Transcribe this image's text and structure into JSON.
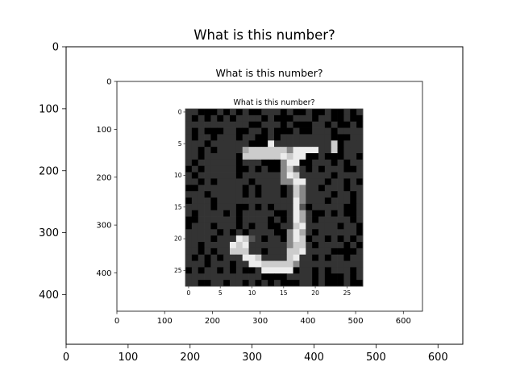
{
  "chart_data": [
    {
      "type": "heatmap",
      "title": "What is this number?",
      "x_ticks": [
        0,
        100,
        200,
        300,
        400,
        500,
        600
      ],
      "y_ticks": [
        0,
        100,
        200,
        300,
        400
      ],
      "xlim": [
        0,
        640
      ],
      "ylim": [
        480,
        0
      ],
      "content": "image of the inner plot below"
    },
    {
      "type": "heatmap",
      "title": "What is this number?",
      "x_ticks": [
        0,
        100,
        200,
        300,
        400,
        500,
        600
      ],
      "y_ticks": [
        0,
        100,
        200,
        300,
        400
      ],
      "xlim": [
        0,
        640
      ],
      "ylim": [
        480,
        0
      ],
      "content": "image of the innermost plot below"
    },
    {
      "type": "heatmap",
      "title": "What is this number?",
      "x_ticks": [
        0,
        5,
        10,
        15,
        20,
        25
      ],
      "y_ticks": [
        0,
        5,
        10,
        15,
        20,
        25
      ],
      "xlim": [
        -0.5,
        27.5
      ],
      "ylim": [
        27.5,
        -0.5
      ],
      "colormap": "gray",
      "levels": {
        "0": "#000000",
        "1": "#333333",
        "2": "#555555",
        "3": "#888888",
        "4": "#aaaaaa",
        "5": "#cccccc",
        "6": "#ececec"
      },
      "grid": [
        "1100010101001110100100100101",
        "1010101011110100011101100100",
        "1111111111001110100011010010",
        "1010001100110100010011101111",
        "1011011101100101111111100011",
        "1110111111000611111111150111",
        "1101011114555555366661150111",
        "1101111105555556566001000110",
        "1011111101110003660011101011",
        "0101111100101003521010111001",
        "1011111101111113651111101111",
        "1101011111011113366111011010",
        "0011111110101110153110111011",
        "1110111110101110153111101101",
        "0111011111111111163111011101",
        "1111011100101011162011111001",
        "1011110101111100164100101001",
        "0011111101111010164101111101",
        "0111011101011001156111110110",
        "1111101010111100364101111110",
        "1111011165210110365011010101",
        "1101111656111111355101111010",
        "1101011555110111556111100001",
        "1010101116651111561101011011",
        "1110111011665555531111111111",
        "0101101010016666601101011101",
        "1111111111110000111101000101",
        "1100110110101010001101000100"
      ]
    }
  ]
}
